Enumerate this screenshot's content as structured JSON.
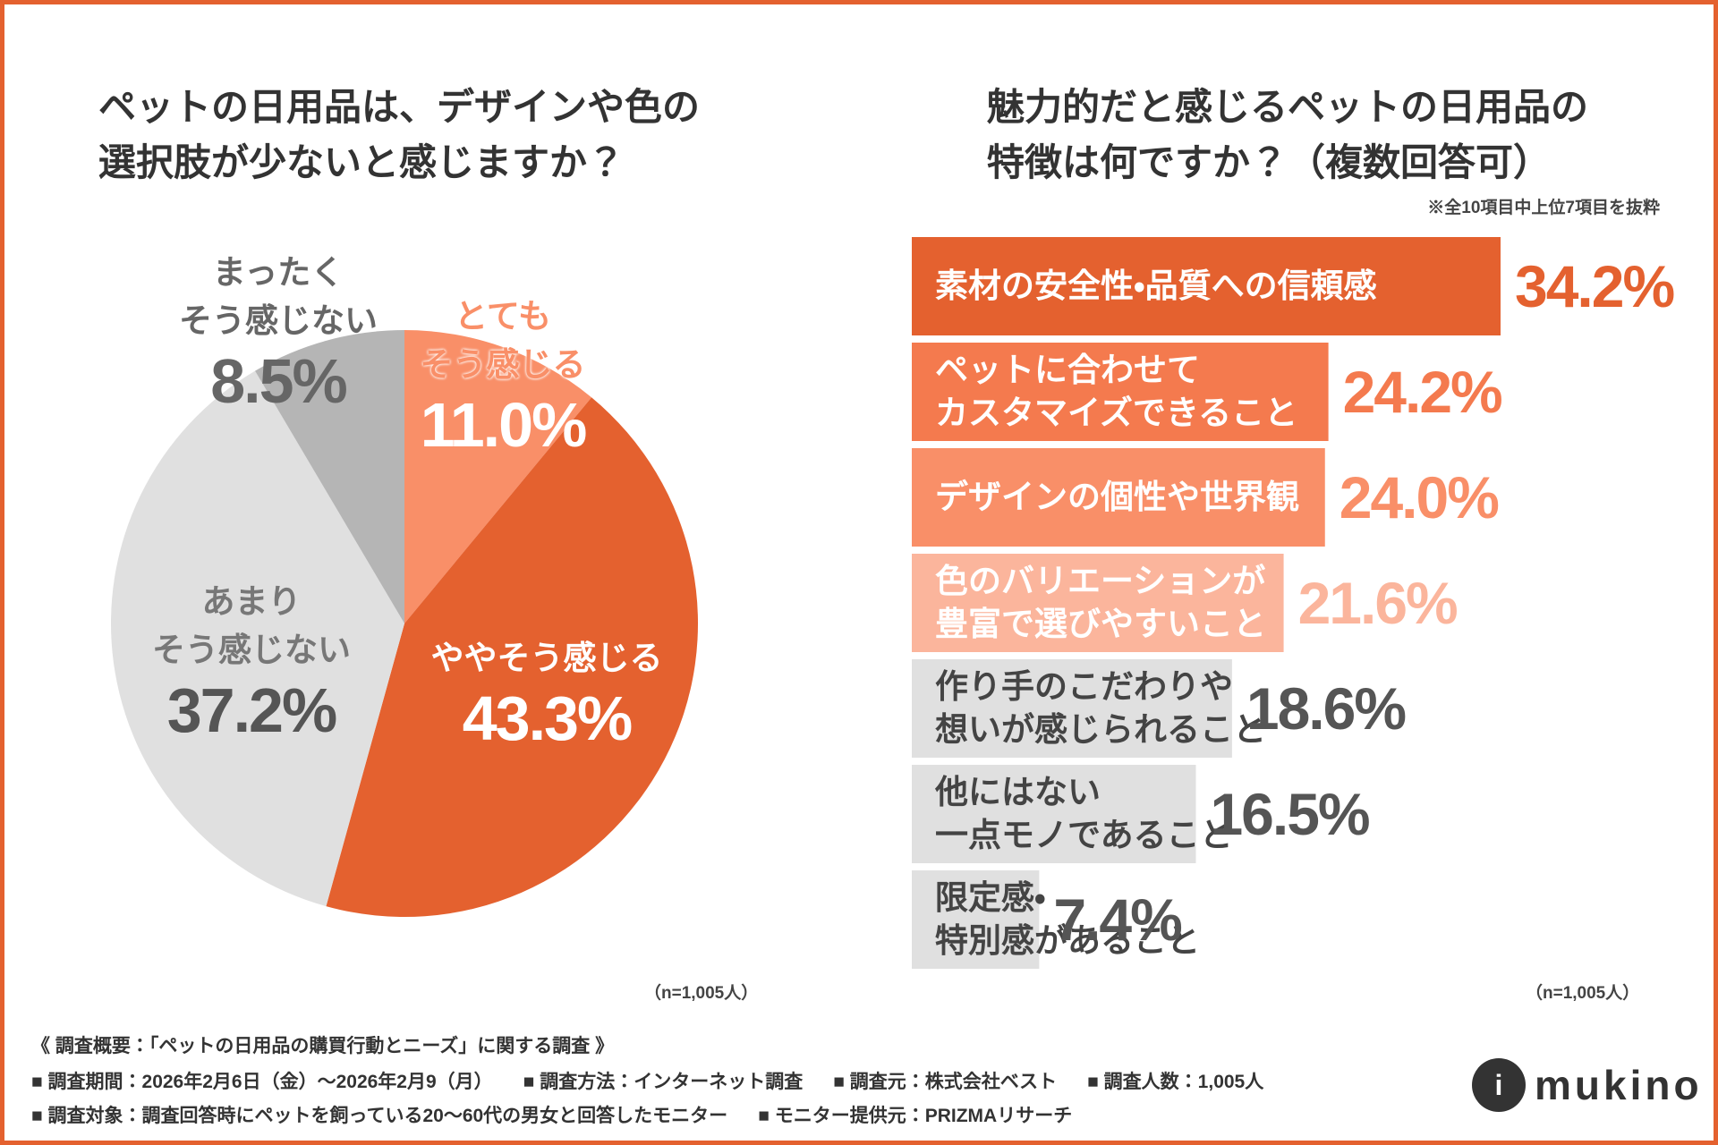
{
  "chart_data": [
    {
      "type": "pie",
      "title": "ペットの日用品は、デザインや色の\n選択肢が少ないと感じますか？",
      "categories": [
        "とても\nそう感じる",
        "ややそう感じる",
        "あまり\nそう感じない",
        "まったく\nそう感じない"
      ],
      "values": [
        11.0,
        43.3,
        37.2,
        8.5
      ],
      "value_labels": [
        "11.0%",
        "43.3%",
        "37.2%",
        "8.5%"
      ],
      "colors": [
        "#f98f68",
        "#e4612f",
        "#e0e0e0",
        "#b5b5b5"
      ],
      "sample_note": "（n=1,005人）"
    },
    {
      "type": "hbar",
      "title": "魅力的だと感じるペットの日用品の\n特徴は何ですか？（複数回答可）",
      "subtitle": "※全10項目中上位7項目を抜粋",
      "categories": [
        "素材の安全性・品質への信頼感",
        "ペットに合わせて\nカスタマイズできること",
        "デザインの個性や世界観",
        "色のバリエーションが\n豊富で選びやすいこと",
        "作り手のこだわりや\n想いが感じられること",
        "他にはない\n一点モノであること",
        "限定感・\n特別感があること"
      ],
      "values": [
        34.2,
        24.2,
        24.0,
        21.6,
        18.6,
        16.5,
        7.4
      ],
      "value_labels": [
        "34.2%",
        "24.2%",
        "24.0%",
        "21.6%",
        "18.6%",
        "16.5%",
        "7.4%"
      ],
      "colors": [
        "#e4612f",
        "#f47a4e",
        "#f98f68",
        "#fbb59c",
        "#e0e0e0",
        "#e0e0e0",
        "#e0e0e0"
      ],
      "xlim": [
        0,
        34.2
      ],
      "sample_note": "（n=1,005人）"
    }
  ],
  "survey": {
    "heading": "《 調査概要：「ペットの日用品の購買行動とニーズ」に関する調査 》",
    "line1": [
      "■ 調査期間：2026年2月6日（金）～2026年2月9（月）",
      "■ 調査方法：インターネット調査",
      "■ 調査元：株式会社ベスト",
      "■ 調査人数：1,005人"
    ],
    "line2": [
      "■ 調査対象：調査回答時にペットを飼っている20～60代の男女と回答したモニター",
      "■ モニター提供元：PRIZMAリサーチ"
    ]
  },
  "logo": "mukino"
}
